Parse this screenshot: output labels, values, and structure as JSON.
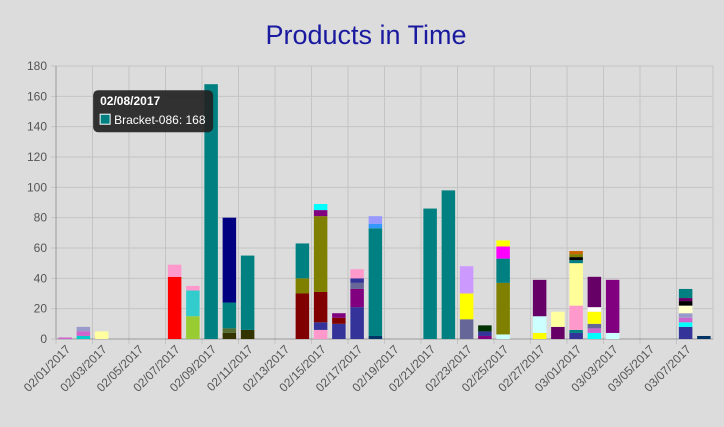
{
  "chart_data": {
    "type": "bar",
    "stacked": true,
    "title": "Products in Time",
    "xlabel": "",
    "ylabel": "",
    "ylim": [
      0,
      180
    ],
    "y_ticks": [
      0,
      20,
      40,
      60,
      80,
      100,
      120,
      140,
      160,
      180
    ],
    "grid": true,
    "x": [
      "02/01/2017",
      "02/02/2017",
      "02/03/2017",
      "02/04/2017",
      "02/05/2017",
      "02/06/2017",
      "02/07/2017",
      "02/08/2017",
      "02/09/2017",
      "02/10/2017",
      "02/11/2017",
      "02/12/2017",
      "02/13/2017",
      "02/14/2017",
      "02/15/2017",
      "02/16/2017",
      "02/17/2017",
      "02/18/2017",
      "02/19/2017",
      "02/20/2017",
      "02/21/2017",
      "02/22/2017",
      "02/23/2017",
      "02/24/2017",
      "02/25/2017",
      "02/26/2017",
      "02/27/2017",
      "02/28/2017",
      "03/01/2017",
      "03/02/2017",
      "03/03/2017",
      "03/04/2017",
      "03/05/2017",
      "03/06/2017",
      "03/07/2017",
      "03/08/2017"
    ],
    "x_tick_labels": [
      "02/01/2017",
      "02/03/2017",
      "02/05/2017",
      "02/07/2017",
      "02/09/2017",
      "02/11/2017",
      "02/13/2017",
      "02/15/2017",
      "02/17/2017",
      "02/19/2017",
      "02/21/2017",
      "02/23/2017",
      "02/25/2017",
      "02/27/2017",
      "03/01/2017",
      "03/03/2017",
      "03/05/2017",
      "03/07/2017"
    ],
    "bars": [
      {
        "date": "02/01/2017",
        "stack": [
          {
            "value": 1,
            "color": "#cc66cc"
          }
        ]
      },
      {
        "date": "02/02/2017",
        "stack": [
          {
            "value": 2,
            "color": "#00cccc"
          },
          {
            "value": 3,
            "color": "#cc66cc"
          },
          {
            "value": 3,
            "color": "#9999cc"
          }
        ]
      },
      {
        "date": "02/03/2017",
        "stack": [
          {
            "value": 5,
            "color": "#ffffa0"
          }
        ]
      },
      {
        "date": "02/07/2017",
        "stack": [
          {
            "value": 41,
            "color": "#ff0000"
          },
          {
            "value": 8,
            "color": "#ff99cc"
          }
        ]
      },
      {
        "date": "02/08/2017",
        "stack": [
          {
            "value": 15,
            "color": "#99cc33"
          },
          {
            "value": 17,
            "color": "#33cccc"
          },
          {
            "value": 3,
            "color": "#ff99cc"
          }
        ]
      },
      {
        "date": "02/09/2017",
        "stack": [
          {
            "value": 168,
            "color": "#008080"
          }
        ]
      },
      {
        "date": "02/10/2017",
        "stack": [
          {
            "value": 4,
            "color": "#333300"
          },
          {
            "value": 3,
            "color": "#556b2f"
          },
          {
            "value": 17,
            "color": "#008080"
          },
          {
            "value": 56,
            "color": "#000080"
          }
        ]
      },
      {
        "date": "02/11/2017",
        "stack": [
          {
            "value": 6,
            "color": "#333300"
          },
          {
            "value": 49,
            "color": "#008080"
          }
        ]
      },
      {
        "date": "02/14/2017",
        "stack": [
          {
            "value": 30,
            "color": "#800000"
          },
          {
            "value": 10,
            "color": "#808000"
          },
          {
            "value": 23,
            "color": "#008080"
          }
        ]
      },
      {
        "date": "02/15/2017",
        "stack": [
          {
            "value": 6,
            "color": "#ff99cc"
          },
          {
            "value": 5,
            "color": "#333399"
          },
          {
            "value": 20,
            "color": "#800000"
          },
          {
            "value": 50,
            "color": "#808000"
          },
          {
            "value": 4,
            "color": "#800080"
          },
          {
            "value": 4,
            "color": "#00ffff"
          }
        ]
      },
      {
        "date": "02/16/2017",
        "stack": [
          {
            "value": 10,
            "color": "#333399"
          },
          {
            "value": 4,
            "color": "#800000"
          },
          {
            "value": 3,
            "color": "#800080"
          }
        ]
      },
      {
        "date": "02/17/2017",
        "stack": [
          {
            "value": 21,
            "color": "#333399"
          },
          {
            "value": 12,
            "color": "#800080"
          },
          {
            "value": 4,
            "color": "#666699"
          },
          {
            "value": 3,
            "color": "#333399"
          },
          {
            "value": 6,
            "color": "#ff99cc"
          }
        ]
      },
      {
        "date": "02/18/2017",
        "stack": [
          {
            "value": 2,
            "color": "#003366"
          },
          {
            "value": 71,
            "color": "#008080"
          },
          {
            "value": 3,
            "color": "#3399ff"
          },
          {
            "value": 5,
            "color": "#9999ff"
          }
        ]
      },
      {
        "date": "02/21/2017",
        "stack": [
          {
            "value": 86,
            "color": "#008080"
          }
        ]
      },
      {
        "date": "02/22/2017",
        "stack": [
          {
            "value": 98,
            "color": "#008080"
          }
        ]
      },
      {
        "date": "02/23/2017",
        "stack": [
          {
            "value": 13,
            "color": "#666699"
          },
          {
            "value": 17,
            "color": "#ffff00"
          },
          {
            "value": 18,
            "color": "#cc99ff"
          }
        ]
      },
      {
        "date": "02/24/2017",
        "stack": [
          {
            "value": 2,
            "color": "#800080"
          },
          {
            "value": 3,
            "color": "#333399"
          },
          {
            "value": 4,
            "color": "#003300"
          }
        ]
      },
      {
        "date": "02/25/2017",
        "stack": [
          {
            "value": 3,
            "color": "#ccffff"
          },
          {
            "value": 34,
            "color": "#808000"
          },
          {
            "value": 16,
            "color": "#008080"
          },
          {
            "value": 8,
            "color": "#ff00ff"
          },
          {
            "value": 4,
            "color": "#ffff00"
          }
        ]
      },
      {
        "date": "02/27/2017",
        "stack": [
          {
            "value": 4,
            "color": "#ffff00"
          },
          {
            "value": 11,
            "color": "#ccffff"
          },
          {
            "value": 24,
            "color": "#660066"
          }
        ]
      },
      {
        "date": "02/28/2017",
        "stack": [
          {
            "value": 8,
            "color": "#660066"
          },
          {
            "value": 10,
            "color": "#ffffa0"
          }
        ]
      },
      {
        "date": "03/01/2017",
        "stack": [
          {
            "value": 4,
            "color": "#333399"
          },
          {
            "value": 2,
            "color": "#008080"
          },
          {
            "value": 16,
            "color": "#ff99cc"
          },
          {
            "value": 28,
            "color": "#ffff99"
          },
          {
            "value": 2,
            "color": "#008080"
          },
          {
            "value": 2,
            "color": "#000000"
          },
          {
            "value": 2,
            "color": "#808000"
          },
          {
            "value": 2,
            "color": "#cc6600"
          }
        ]
      },
      {
        "date": "03/02/2017",
        "stack": [
          {
            "value": 4,
            "color": "#00ffff"
          },
          {
            "value": 3,
            "color": "#cc66cc"
          },
          {
            "value": 3,
            "color": "#666699"
          },
          {
            "value": 8,
            "color": "#ffff00"
          },
          {
            "value": 3,
            "color": "#ffffff"
          },
          {
            "value": 20,
            "color": "#660066"
          }
        ]
      },
      {
        "date": "03/03/2017",
        "stack": [
          {
            "value": 4,
            "color": "#ccffff"
          },
          {
            "value": 35,
            "color": "#800080"
          }
        ]
      },
      {
        "date": "03/07/2017",
        "stack": [
          {
            "value": 8,
            "color": "#333399"
          },
          {
            "value": 3,
            "color": "#00ffff"
          },
          {
            "value": 3,
            "color": "#cc66cc"
          },
          {
            "value": 3,
            "color": "#9999cc"
          },
          {
            "value": 5,
            "color": "#ffffcc"
          },
          {
            "value": 3,
            "color": "#000000"
          },
          {
            "value": 2,
            "color": "#660066"
          },
          {
            "value": 6,
            "color": "#008080"
          }
        ]
      },
      {
        "date": "03/08/2017",
        "stack": [
          {
            "value": 2,
            "color": "#003366"
          }
        ]
      }
    ],
    "tooltip": {
      "title": "02/08/2017",
      "label": "Bracket-086: 168",
      "swatch_color": "#008080",
      "anchor_date": "02/09/2017",
      "anchor_value": 168
    }
  }
}
